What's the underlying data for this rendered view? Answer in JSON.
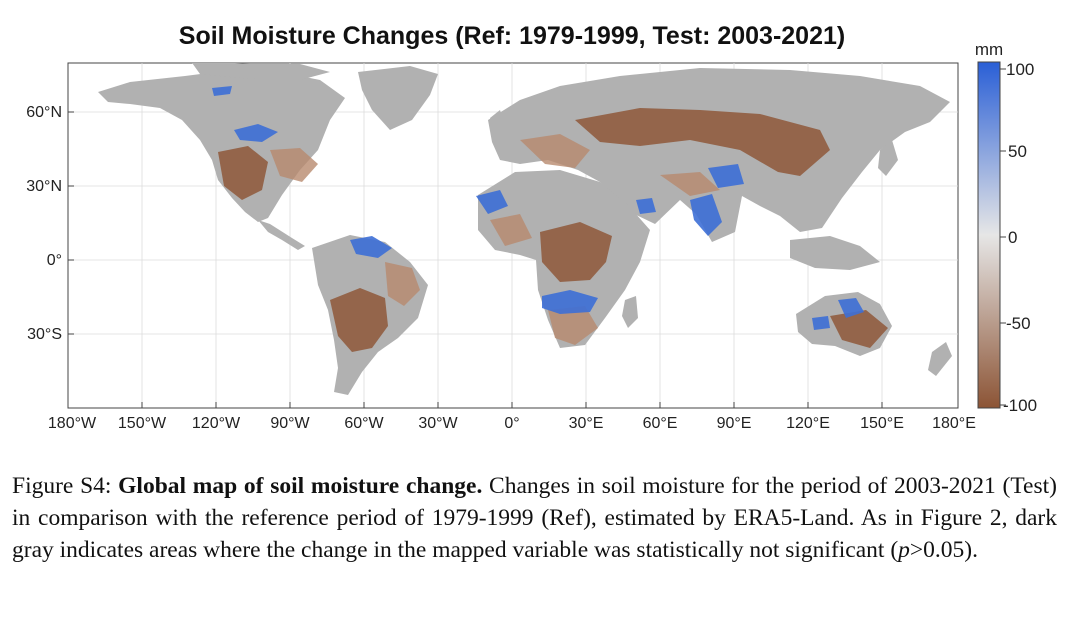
{
  "figure": {
    "title": "Soil Moisture Changes (Ref: 1979-1999, Test: 2003-2021)",
    "lon_ticks": [
      "180°W",
      "150°W",
      "120°W",
      "90°W",
      "60°W",
      "30°W",
      "0°",
      "30°E",
      "60°E",
      "90°E",
      "120°E",
      "150°E",
      "180°E"
    ],
    "lat_ticks": [
      "60°N",
      "30°N",
      "0°",
      "30°S"
    ],
    "colorbar": {
      "unit": "mm",
      "ticks": [
        "100",
        "50",
        "0",
        "-50",
        "-100"
      ],
      "color_max": "#2a5fd6",
      "color_mid": "#e6e6e6",
      "color_min": "#8c5435"
    },
    "not_significant_color": "#b1b1b1"
  },
  "caption": {
    "label": "Figure S4: ",
    "bold": "Global map of soil moisture change.",
    "rest_1": "  Changes in soil moisture for the period of 2003-2021 (Test) in comparison with the reference period of 1979-1999 (Ref), estimated by ERA5-Land. As in Figure 2, dark gray indicates areas where the change in the mapped variable was statistically not significant (",
    "italic": "p",
    "rest_2": ">0.05)."
  }
}
